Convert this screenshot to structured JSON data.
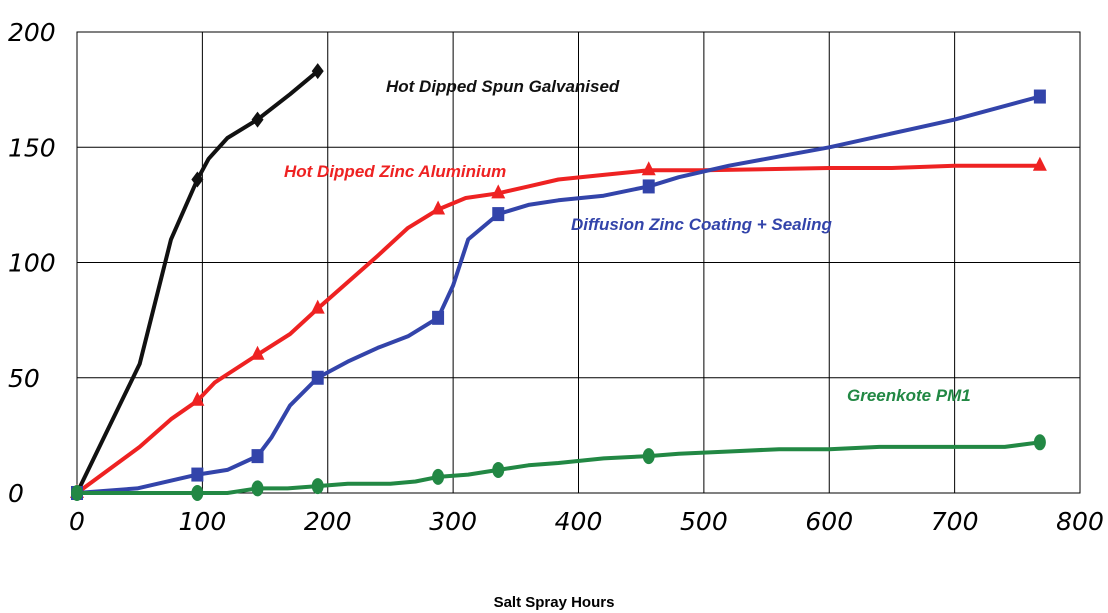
{
  "chart_data": {
    "type": "line",
    "title": "",
    "xlabel": "Salt Spray Hours",
    "ylabel": "",
    "xlim": [
      0,
      800
    ],
    "ylim": [
      0,
      200
    ],
    "x_ticks": [
      0,
      100,
      200,
      300,
      400,
      500,
      600,
      700,
      800
    ],
    "y_ticks": [
      0,
      50,
      100,
      150,
      200
    ],
    "grid": true,
    "legend": "labels placed next to lines",
    "series": [
      {
        "name": "Hot Dipped Spun Galvanised",
        "color": "#111111",
        "marker": "diamond",
        "points": [
          [
            0,
            0
          ],
          [
            25,
            28
          ],
          [
            50,
            56
          ],
          [
            75,
            110
          ],
          [
            96,
            136
          ],
          [
            105,
            145
          ],
          [
            120,
            154
          ],
          [
            144,
            162
          ],
          [
            170,
            173
          ],
          [
            192,
            183
          ]
        ],
        "marker_points": [
          [
            0,
            0
          ],
          [
            96,
            136
          ],
          [
            144,
            162
          ],
          [
            192,
            183
          ]
        ]
      },
      {
        "name": "Hot Dipped Zinc Aluminium",
        "color": "#ee2222",
        "marker": "triangle",
        "points": [
          [
            0,
            0
          ],
          [
            50,
            20
          ],
          [
            75,
            32
          ],
          [
            96,
            40
          ],
          [
            110,
            48
          ],
          [
            144,
            60
          ],
          [
            170,
            69
          ],
          [
            192,
            80
          ],
          [
            240,
            103
          ],
          [
            264,
            115
          ],
          [
            288,
            123
          ],
          [
            310,
            128
          ],
          [
            336,
            130
          ],
          [
            360,
            133
          ],
          [
            384,
            136
          ],
          [
            420,
            138
          ],
          [
            456,
            140
          ],
          [
            500,
            140
          ],
          [
            600,
            141
          ],
          [
            650,
            141
          ],
          [
            700,
            142
          ],
          [
            768,
            142
          ]
        ],
        "marker_points": [
          [
            0,
            0
          ],
          [
            96,
            40
          ],
          [
            144,
            60
          ],
          [
            192,
            80
          ],
          [
            288,
            123
          ],
          [
            336,
            130
          ],
          [
            456,
            140
          ],
          [
            768,
            142
          ]
        ]
      },
      {
        "name": "Diffusion Zinc Coating + Sealing",
        "color": "#3344aa",
        "marker": "square",
        "points": [
          [
            0,
            0
          ],
          [
            48,
            2
          ],
          [
            80,
            6
          ],
          [
            96,
            8
          ],
          [
            120,
            10
          ],
          [
            144,
            16
          ],
          [
            155,
            24
          ],
          [
            170,
            38
          ],
          [
            192,
            50
          ],
          [
            216,
            57
          ],
          [
            240,
            63
          ],
          [
            264,
            68
          ],
          [
            288,
            76
          ],
          [
            300,
            90
          ],
          [
            312,
            110
          ],
          [
            336,
            121
          ],
          [
            360,
            125
          ],
          [
            384,
            127
          ],
          [
            420,
            129
          ],
          [
            456,
            133
          ],
          [
            480,
            137
          ],
          [
            520,
            142
          ],
          [
            600,
            150
          ],
          [
            700,
            162
          ],
          [
            768,
            172
          ]
        ],
        "marker_points": [
          [
            0,
            0
          ],
          [
            96,
            8
          ],
          [
            144,
            16
          ],
          [
            192,
            50
          ],
          [
            288,
            76
          ],
          [
            336,
            121
          ],
          [
            456,
            133
          ],
          [
            768,
            172
          ]
        ]
      },
      {
        "name": "Greenkote PM1",
        "color": "#228844",
        "marker": "circle",
        "points": [
          [
            0,
            0
          ],
          [
            96,
            0
          ],
          [
            120,
            0
          ],
          [
            144,
            2
          ],
          [
            168,
            2
          ],
          [
            192,
            3
          ],
          [
            216,
            4
          ],
          [
            250,
            4
          ],
          [
            270,
            5
          ],
          [
            288,
            7
          ],
          [
            312,
            8
          ],
          [
            336,
            10
          ],
          [
            360,
            12
          ],
          [
            384,
            13
          ],
          [
            420,
            15
          ],
          [
            456,
            16
          ],
          [
            480,
            17
          ],
          [
            520,
            18
          ],
          [
            560,
            19
          ],
          [
            600,
            19
          ],
          [
            640,
            20
          ],
          [
            700,
            20
          ],
          [
            740,
            20
          ],
          [
            768,
            22
          ]
        ],
        "marker_points": [
          [
            0,
            0
          ],
          [
            96,
            0
          ],
          [
            144,
            2
          ],
          [
            192,
            3
          ],
          [
            288,
            7
          ],
          [
            336,
            10
          ],
          [
            456,
            16
          ],
          [
            768,
            22
          ]
        ]
      }
    ]
  }
}
